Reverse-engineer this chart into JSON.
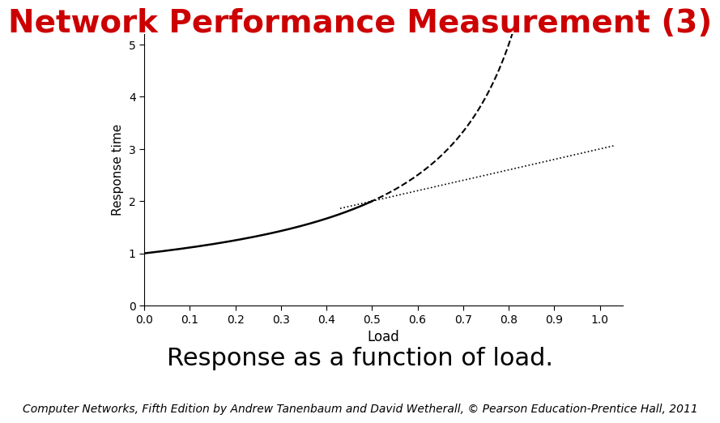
{
  "title": "Network Performance Measurement (3)",
  "title_color": "#cc0000",
  "title_fontsize": 28,
  "subtitle": "Response as a function of load.",
  "subtitle_fontsize": 22,
  "footer": "Computer Networks, Fifth Edition by Andrew Tanenbaum and David Wetherall, © Pearson Education-Prentice Hall, 2011",
  "footer_fontsize": 10,
  "xlabel": "Load",
  "ylabel": "Response time",
  "xlim": [
    0,
    1.05
  ],
  "ylim": [
    0,
    5.2
  ],
  "xticks": [
    0,
    0.1,
    0.2,
    0.3,
    0.4,
    0.5,
    0.6,
    0.7,
    0.8,
    0.9,
    1.0
  ],
  "yticks": [
    0,
    1,
    2,
    3,
    4,
    5
  ],
  "background_color": "#ffffff",
  "line_color": "#000000"
}
